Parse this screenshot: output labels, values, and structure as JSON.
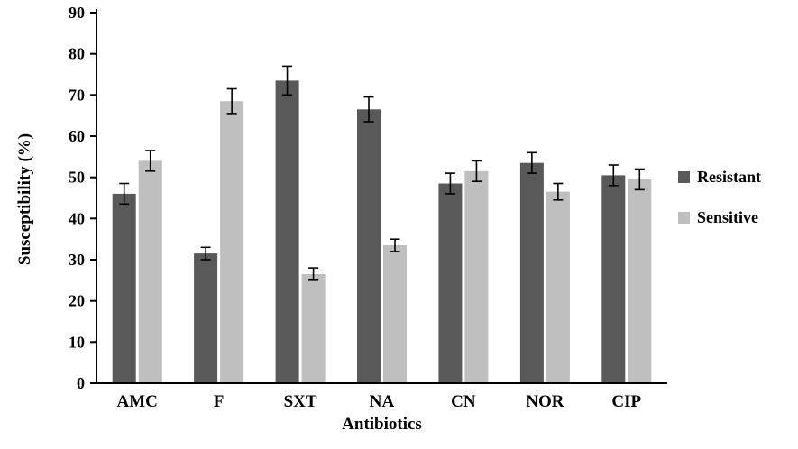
{
  "chart_data": {
    "type": "bar",
    "title": "",
    "xlabel": "Antibiotics",
    "ylabel": "Susceptibility (%)",
    "ylim": [
      0,
      90
    ],
    "ytick_step": 10,
    "grid": false,
    "legend_position": "right",
    "error_bars": true,
    "categories": [
      "AMC",
      "F",
      "SXT",
      "NA",
      "CN",
      "NOR",
      "CIP"
    ],
    "series": [
      {
        "name": "Resistant",
        "color": "#595959",
        "values": [
          46,
          31.5,
          73.5,
          66.5,
          48.5,
          53.5,
          50.5
        ],
        "errors": [
          2.5,
          1.5,
          3.5,
          3,
          2.5,
          2.5,
          2.5
        ]
      },
      {
        "name": "Sensitive",
        "color": "#bfbfbf",
        "values": [
          54,
          68.5,
          26.5,
          33.5,
          51.5,
          46.5,
          49.5
        ],
        "errors": [
          2.5,
          3,
          1.5,
          1.5,
          2.5,
          2,
          2.5
        ]
      }
    ]
  }
}
